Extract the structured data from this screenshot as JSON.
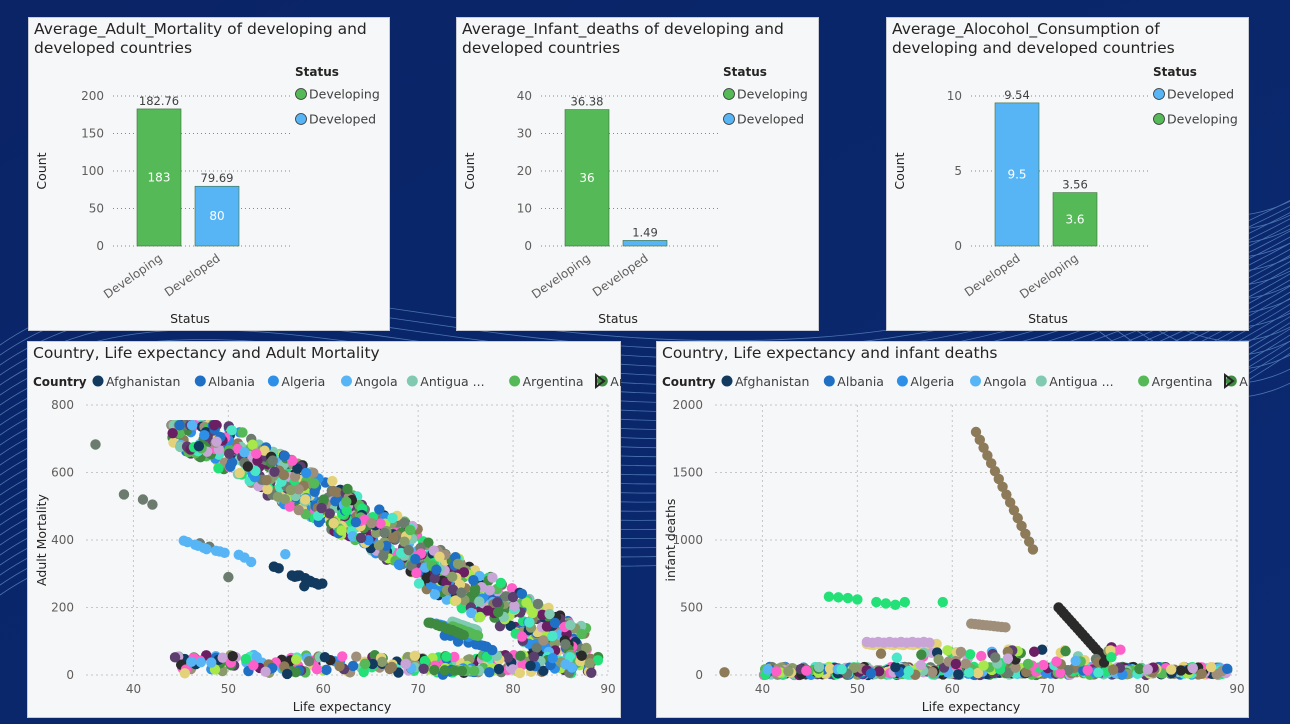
{
  "colors": {
    "developing": "#55b957",
    "developed": "#57b5f5",
    "background": "#0a2466"
  },
  "chart_data": [
    {
      "type": "bar",
      "title": "Average_Adult_Mortality of developing and developed countries",
      "categories": [
        "Developing",
        "Developed"
      ],
      "values": [
        182.76,
        79.69
      ],
      "inbar_labels": [
        "183",
        "80"
      ],
      "data_labels": [
        "182.76",
        "79.69"
      ],
      "bar_colors": [
        "#55b957",
        "#57b5f5"
      ],
      "xlabel": "Status",
      "ylabel": "Count",
      "ylim": [
        0,
        200
      ],
      "yticks": [
        "0",
        "50",
        "100",
        "150",
        "200"
      ],
      "legend_title": "Status",
      "legend": [
        {
          "name": "Developing",
          "color": "#55b957"
        },
        {
          "name": "Developed",
          "color": "#57b5f5"
        }
      ]
    },
    {
      "type": "bar",
      "title": "Average_Infant_deaths of developing and developed countries",
      "categories": [
        "Developing",
        "Developed"
      ],
      "values": [
        36.38,
        1.49
      ],
      "inbar_labels": [
        "36",
        ""
      ],
      "data_labels": [
        "36.38",
        "1.49"
      ],
      "bar_colors": [
        "#55b957",
        "#57b5f5"
      ],
      "xlabel": "Status",
      "ylabel": "Count",
      "ylim": [
        0,
        40
      ],
      "yticks": [
        "0",
        "10",
        "20",
        "30",
        "40"
      ],
      "legend_title": "Status",
      "legend": [
        {
          "name": "Developing",
          "color": "#55b957"
        },
        {
          "name": "Developed",
          "color": "#57b5f5"
        }
      ]
    },
    {
      "type": "bar",
      "title": "Average_Alocohol_Consumption of developing and developed countries",
      "categories": [
        "Developed",
        "Developing"
      ],
      "values": [
        9.54,
        3.56
      ],
      "inbar_labels": [
        "9.5",
        "3.6"
      ],
      "data_labels": [
        "9.54",
        "3.56"
      ],
      "bar_colors": [
        "#57b5f5",
        "#55b957"
      ],
      "xlabel": "Status",
      "ylabel": "Count",
      "ylim": [
        0,
        10
      ],
      "yticks": [
        "0",
        "5",
        "10"
      ],
      "legend_title": "Status",
      "legend": [
        {
          "name": "Developed",
          "color": "#57b5f5"
        },
        {
          "name": "Developing",
          "color": "#55b957"
        }
      ]
    },
    {
      "type": "scatter",
      "title": "Country, Life expectancy and Adult Mortality",
      "xlabel": "Life expectancy",
      "ylabel": "Adult Mortality",
      "xlim": [
        35,
        90
      ],
      "ylim": [
        0,
        800
      ],
      "xticks": [
        "40",
        "50",
        "60",
        "70",
        "80",
        "90"
      ],
      "yticks": [
        "0",
        "200",
        "400",
        "600",
        "800"
      ],
      "legend_title": "Country",
      "legend": [
        {
          "name": "Afghanistan",
          "color": "#12395e"
        },
        {
          "name": "Albania",
          "color": "#1f6fc4"
        },
        {
          "name": "Algeria",
          "color": "#2d8fe8"
        },
        {
          "name": "Angola",
          "color": "#57b5f5"
        },
        {
          "name": "Antigua ...",
          "color": "#7fcab0"
        },
        {
          "name": "Argentina",
          "color": "#55b957"
        },
        {
          "name": "Armenia",
          "color": "#3d8a40"
        }
      ],
      "series": [
        {
          "name": "Afghanistan",
          "color": "#12395e",
          "points": [
            [
              58.0,
              263
            ],
            [
              59.9,
              271
            ],
            [
              59.5,
              268
            ],
            [
              59.2,
              272
            ],
            [
              58.8,
              275
            ],
            [
              58.6,
              279
            ],
            [
              58.1,
              287
            ],
            [
              57.5,
              295
            ],
            [
              57.3,
              295
            ],
            [
              57.3,
              293
            ],
            [
              57.0,
              291
            ],
            [
              56.7,
              295
            ],
            [
              56.2,
              3
            ],
            [
              55.3,
              316
            ],
            [
              54.8,
              321
            ],
            [
              54.8,
              321
            ]
          ]
        },
        {
          "name": "Albania",
          "color": "#1f6fc4",
          "points": [
            [
              77.8,
              74
            ],
            [
              77.5,
              8
            ],
            [
              77.2,
              84
            ],
            [
              76.9,
              86
            ],
            [
              76.6,
              88
            ],
            [
              76.2,
              91
            ],
            [
              76.1,
              91
            ],
            [
              75.3,
              96
            ],
            [
              75.9,
              9
            ],
            [
              74.2,
              99
            ],
            [
              73.5,
              15
            ],
            [
              73.0,
              11
            ],
            [
              73.3,
              11
            ],
            [
              73.4,
              116
            ],
            [
              72.8,
              117
            ],
            [
              72.6,
              1
            ]
          ]
        },
        {
          "name": "Algeria",
          "color": "#2d8fe8",
          "points": [
            [
              75.6,
              19
            ],
            [
              75.4,
              11
            ],
            [
              75.3,
              113
            ],
            [
              75.1,
              116
            ],
            [
              74.9,
              12
            ],
            [
              74.7,
              122
            ],
            [
              74.4,
              127
            ],
            [
              74.1,
              131
            ],
            [
              73.8,
              134
            ],
            [
              73.4,
              137
            ],
            [
              73.1,
              141
            ],
            [
              72.9,
              144
            ],
            [
              72.6,
              147
            ],
            [
              72.3,
              149
            ],
            [
              71.9,
              152
            ],
            [
              71.3,
              155
            ]
          ]
        },
        {
          "name": "Angola",
          "color": "#57b5f5",
          "points": [
            [
              52.4,
              335
            ],
            [
              51.7,
              348
            ],
            [
              51.1,
              356
            ],
            [
              56.0,
              358
            ],
            [
              49.6,
              362
            ],
            [
              49.1,
              366
            ],
            [
              48.7,
              368
            ],
            [
              48.2,
              37
            ],
            [
              47.7,
              373
            ],
            [
              47.4,
              377
            ],
            [
              47.1,
              38
            ],
            [
              46.8,
              383
            ],
            [
              46.5,
              386
            ],
            [
              46.1,
              39
            ],
            [
              45.7,
              394
            ],
            [
              45.3,
              398
            ]
          ]
        },
        {
          "name": "Antigua ...",
          "color": "#7fcab0",
          "points": [
            [
              76.4,
              13
            ],
            [
              76.2,
              131
            ],
            [
              76.1,
              134
            ],
            [
              75.9,
              136
            ],
            [
              75.7,
              137
            ],
            [
              75.6,
              138
            ],
            [
              75.4,
              14
            ],
            [
              75.2,
              142
            ],
            [
              75.0,
              144
            ],
            [
              74.8,
              146
            ],
            [
              74.6,
              148
            ],
            [
              74.4,
              15
            ],
            [
              74.2,
              152
            ],
            [
              74.0,
              154
            ],
            [
              73.8,
              156
            ],
            [
              73.6,
              158
            ]
          ]
        },
        {
          "name": "Argentina",
          "color": "#55b957",
          "points": [
            [
              76.3,
              116
            ],
            [
              76.2,
              118
            ],
            [
              76.0,
              118
            ],
            [
              75.9,
              12
            ],
            [
              75.7,
              122
            ],
            [
              75.5,
              124
            ],
            [
              75.4,
              126
            ],
            [
              75.2,
              128
            ],
            [
              75.0,
              13
            ],
            [
              74.8,
              132
            ],
            [
              74.6,
              134
            ],
            [
              74.4,
              136
            ],
            [
              74.2,
              138
            ],
            [
              74.0,
              14
            ],
            [
              73.8,
              142
            ],
            [
              73.6,
              144
            ]
          ]
        },
        {
          "name": "Armenia",
          "color": "#3d8a40",
          "points": [
            [
              74.8,
              118
            ],
            [
              74.6,
              12
            ],
            [
              74.4,
              123
            ],
            [
              74.2,
              125
            ],
            [
              74.0,
              128
            ],
            [
              73.8,
              13
            ],
            [
              73.6,
              133
            ],
            [
              73.3,
              135
            ],
            [
              73.0,
              138
            ],
            [
              72.8,
              14
            ],
            [
              72.6,
              143
            ],
            [
              72.3,
              145
            ],
            [
              72.0,
              148
            ],
            [
              71.7,
              15
            ],
            [
              71.4,
              153
            ],
            [
              71.1,
              155
            ]
          ]
        }
      ]
    },
    {
      "type": "scatter",
      "title": "Country, Life expectancy and infant deaths",
      "xlabel": "Life expectancy",
      "ylabel": "infant deaths",
      "xlim": [
        35,
        90
      ],
      "ylim": [
        0,
        2000
      ],
      "xticks": [
        "40",
        "50",
        "60",
        "70",
        "80",
        "90"
      ],
      "yticks": [
        "0",
        "500",
        "1000",
        "1500",
        "2000"
      ],
      "legend_title": "Country",
      "legend": [
        {
          "name": "Afghanistan",
          "color": "#12395e"
        },
        {
          "name": "Albania",
          "color": "#1f6fc4"
        },
        {
          "name": "Algeria",
          "color": "#2d8fe8"
        },
        {
          "name": "Angola",
          "color": "#57b5f5"
        },
        {
          "name": "Antigua ...",
          "color": "#7fcab0"
        },
        {
          "name": "Argentina",
          "color": "#55b957"
        },
        {
          "name": "Armenia",
          "color": "#3d8a40"
        }
      ]
    }
  ]
}
